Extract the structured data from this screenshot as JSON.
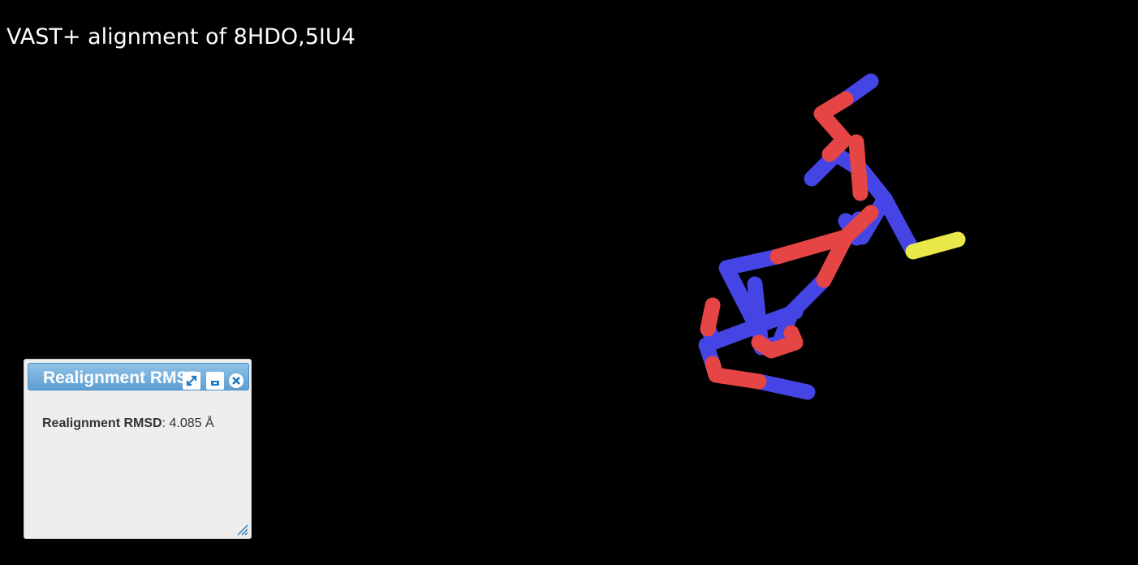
{
  "page": {
    "title": "VAST+ alignment of 8HDO,5IU4"
  },
  "viewer": {
    "colors": {
      "background": "#000000",
      "chain_a": "#e84848",
      "chain_b": "#4848e8",
      "highlight": "#e8e84a"
    }
  },
  "dialog": {
    "title": "Realignment RMSD",
    "rmsd_label": "Realignment RMSD",
    "rmsd_value": ": 4.085 Å",
    "icons": [
      "expand-icon",
      "minimize-icon",
      "close-icon",
      "resize-grip-icon"
    ]
  }
}
